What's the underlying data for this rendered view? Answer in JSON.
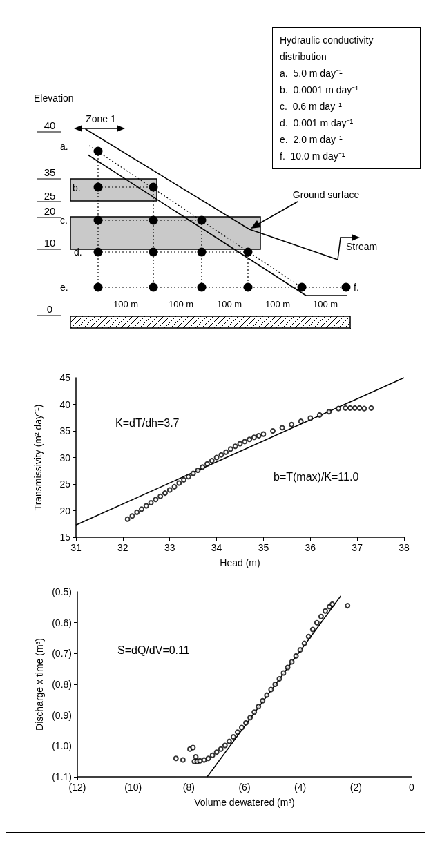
{
  "chart_data": [
    {
      "type": "other",
      "title": "Hydraulic conductivity distribution",
      "annotations": [
        "Elevation",
        "Zone 1",
        "40",
        "35",
        "25",
        "20",
        "10",
        "0",
        "a.",
        "b.",
        "c.",
        "d.",
        "e.",
        "f.",
        "Ground surface",
        "Stream",
        "100 m",
        "100 m",
        "100 m",
        "100 m",
        "100 m",
        "a.  5.0 m day⁻¹",
        "b.  0.0001 m day⁻¹",
        "c.  0.6 m day⁻¹",
        "d.  0.001 m day⁻¹",
        "e.  2.0 m day⁻¹",
        "f.  10.0 m day⁻¹"
      ]
    },
    {
      "type": "scatter",
      "xlabel": "Head (m)",
      "ylabel": "Transmissivity (m² day⁻¹)",
      "xlim": [
        31,
        38
      ],
      "xticks": [
        31,
        32,
        33,
        34,
        35,
        36,
        37,
        38
      ],
      "ylim": [
        15,
        45
      ],
      "yticks": [
        15,
        20,
        25,
        30,
        35,
        40,
        45
      ],
      "grid": false,
      "color": "#000000",
      "annotations": [
        "K=dT/dh=3.7",
        "b=T(max)/K=11.0"
      ],
      "series": [
        {
          "marker": "circle",
          "x": [
            32.1,
            32.2,
            32.3,
            32.4,
            32.5,
            32.6,
            32.7,
            32.8,
            32.9,
            33.0,
            33.1,
            33.2,
            33.3,
            33.4,
            33.5,
            33.6,
            33.7,
            33.8,
            33.9,
            34.0,
            34.1,
            34.2,
            34.3,
            34.4,
            34.5,
            34.6,
            34.7,
            34.8,
            34.9,
            35.0,
            35.2,
            35.4,
            35.6,
            35.8,
            36.0,
            36.2,
            36.4,
            36.6,
            36.75,
            36.85,
            36.95,
            37.05,
            37.15,
            37.3
          ],
          "values": [
            18.4,
            19.0,
            19.7,
            20.3,
            20.9,
            21.5,
            22.1,
            22.7,
            23.3,
            23.9,
            24.5,
            25.2,
            25.8,
            26.4,
            27.0,
            27.6,
            28.2,
            28.8,
            29.4,
            30.0,
            30.5,
            31.0,
            31.6,
            32.1,
            32.6,
            33.0,
            33.4,
            33.8,
            34.1,
            34.4,
            35.0,
            35.6,
            36.2,
            36.8,
            37.4,
            38.0,
            38.6,
            39.2,
            39.3,
            39.3,
            39.3,
            39.3,
            39.2,
            39.3
          ]
        },
        {
          "type": "line",
          "marker": "none",
          "x": [
            31,
            38
          ],
          "values": [
            17.3,
            45
          ]
        }
      ]
    },
    {
      "type": "scatter",
      "xlabel": "Volume dewatered (m³)",
      "ylabel": "Discharge x time (m³)",
      "xlim": [
        -12,
        0
      ],
      "xticks": [
        {
          "value": -12,
          "label": "(12)"
        },
        {
          "value": -10,
          "label": "(10)"
        },
        {
          "value": -8,
          "label": "(8)"
        },
        {
          "value": -6,
          "label": "(6)"
        },
        {
          "value": -4,
          "label": "(4)"
        },
        {
          "value": -2,
          "label": "(2)"
        },
        0
      ],
      "ylim": [
        -1.1,
        -0.5
      ],
      "yticks": [
        {
          "value": -1.1,
          "label": "(1.1)"
        },
        {
          "value": -1.0,
          "label": "(1.0)"
        },
        {
          "value": -0.9,
          "label": "(0.9)"
        },
        {
          "value": -0.8,
          "label": "(0.8)"
        },
        {
          "value": -0.7,
          "label": "(0.7)"
        },
        {
          "value": -0.6,
          "label": "(0.6)"
        },
        {
          "value": -0.5,
          "label": "(0.5)"
        }
      ],
      "grid": false,
      "annotations": [
        "S=dQ/dV=0.11"
      ],
      "series": [
        {
          "color": "#000000",
          "marker": "circle",
          "x": [
            -8.46,
            -8.21,
            -7.96,
            -7.85,
            -7.75,
            -7.8,
            -7.7,
            -7.6,
            -7.45,
            -7.3,
            -7.15,
            -7.0,
            -6.85,
            -6.7,
            -6.55,
            -6.4,
            -6.25,
            -6.1,
            -5.95,
            -5.8,
            -5.65,
            -5.5,
            -5.35,
            -5.2,
            -5.05,
            -4.9,
            -4.75,
            -4.6,
            -4.45,
            -4.3,
            -4.15,
            -4.0,
            -3.85,
            -3.7,
            -3.55,
            -3.4,
            -3.25,
            -3.1,
            -2.95,
            -2.85,
            -2.3
          ],
          "values": [
            -1.04,
            -1.045,
            -1.01,
            -1.005,
            -1.035,
            -1.05,
            -1.05,
            -1.048,
            -1.045,
            -1.04,
            -1.03,
            -1.02,
            -1.01,
            -0.998,
            -0.985,
            -0.97,
            -0.955,
            -0.94,
            -0.925,
            -0.908,
            -0.89,
            -0.872,
            -0.853,
            -0.835,
            -0.817,
            -0.8,
            -0.782,
            -0.763,
            -0.745,
            -0.727,
            -0.708,
            -0.688,
            -0.667,
            -0.645,
            -0.622,
            -0.6,
            -0.58,
            -0.562,
            -0.548,
            -0.54,
            -0.545
          ]
        },
        {
          "type": "line",
          "color": "#000000",
          "marker": "none",
          "x": [
            -7.34,
            -2.54
          ],
          "values": [
            -1.1,
            -0.513
          ]
        }
      ]
    }
  ]
}
